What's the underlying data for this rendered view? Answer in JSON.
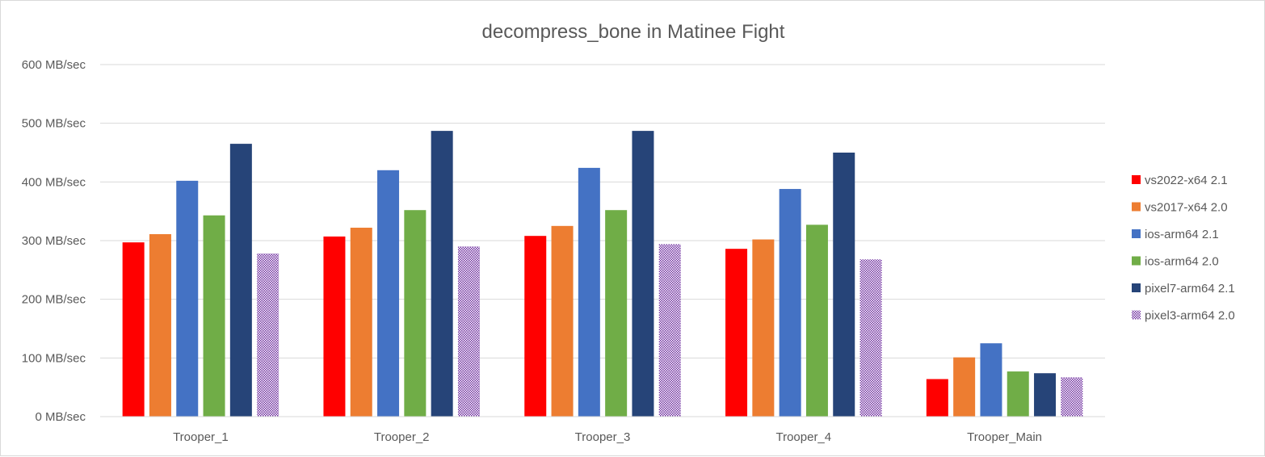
{
  "chart_data": {
    "type": "bar",
    "title": "decompress_bone  in Matinee Fight",
    "xlabel": "",
    "ylabel": "",
    "categories": [
      "Trooper_1",
      "Trooper_2",
      "Trooper_3",
      "Trooper_4",
      "Trooper_Main"
    ],
    "ylim": [
      0,
      600
    ],
    "yticks": [
      0,
      100,
      200,
      300,
      400,
      500,
      600
    ],
    "ytick_labels": [
      "0 MB/sec",
      "100 MB/sec",
      "200 MB/sec",
      "300 MB/sec",
      "400 MB/sec",
      "500 MB/sec",
      "600 MB/sec"
    ],
    "grid": true,
    "legend_position": "right",
    "series": [
      {
        "name": "vs2022-x64 2.1",
        "color": "#ff0000",
        "pattern": "solid",
        "values": [
          297,
          307,
          308,
          286,
          64
        ]
      },
      {
        "name": "vs2017-x64 2.0",
        "color": "#ed7d31",
        "pattern": "solid",
        "values": [
          311,
          322,
          325,
          302,
          101
        ]
      },
      {
        "name": "ios-arm64 2.1",
        "color": "#4472c4",
        "pattern": "solid",
        "values": [
          402,
          420,
          424,
          388,
          125
        ]
      },
      {
        "name": "ios-arm64 2.0",
        "color": "#70ad47",
        "pattern": "solid",
        "values": [
          343,
          352,
          352,
          327,
          77
        ]
      },
      {
        "name": "pixel7-arm64 2.1",
        "color": "#264478",
        "pattern": "solid",
        "values": [
          465,
          487,
          487,
          450,
          74
        ]
      },
      {
        "name": "pixel3-arm64 2.0",
        "color": "#7030a0",
        "pattern": "checker",
        "values": [
          278,
          290,
          294,
          268,
          67
        ]
      }
    ]
  }
}
